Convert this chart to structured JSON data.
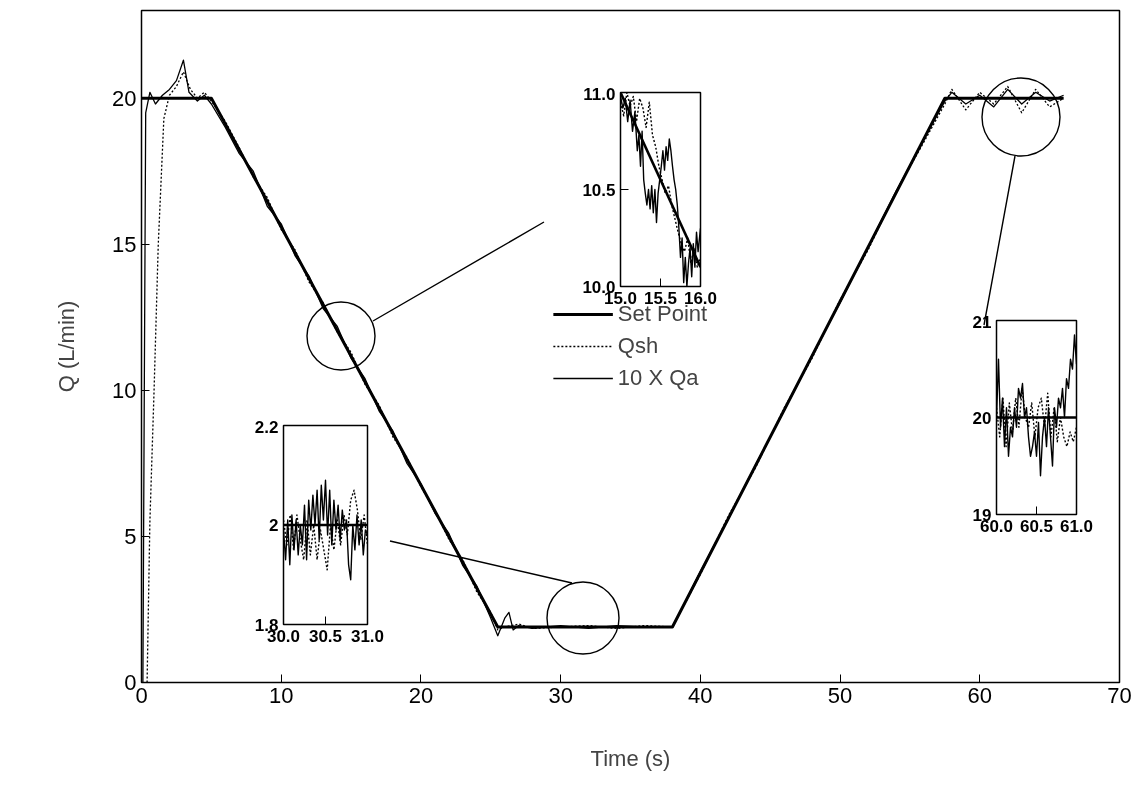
{
  "chart_data": [
    {
      "type": "line",
      "xlabel": "Time (s)",
      "ylabel": "Q (L/min)",
      "xlim": [
        0,
        70
      ],
      "ylim": [
        0,
        23
      ],
      "xticks": [
        0,
        10,
        20,
        30,
        40,
        50,
        60,
        70
      ],
      "yticks": [
        0,
        5,
        10,
        15,
        20
      ],
      "legend": "center",
      "series": [
        {
          "name": "Set Point",
          "color": "#000000",
          "line_style": "solid",
          "x": [
            0,
            5,
            25.5,
            38,
            57.5,
            66
          ],
          "values": [
            20,
            20,
            1.9,
            1.9,
            20,
            20
          ]
        },
        {
          "name": "Qsh",
          "color": "#000000",
          "line_style": "dotted",
          "x": [
            0.4,
            0.6,
            0.9,
            1.2,
            1.6,
            2.0,
            2.5,
            3.0,
            3.5,
            4.0,
            4.5,
            5.0,
            6,
            7,
            8,
            9,
            10,
            11,
            12,
            13,
            14,
            15,
            16,
            17,
            18,
            19,
            20,
            21,
            22,
            23,
            24,
            25,
            25.5,
            26,
            27,
            28,
            30,
            32,
            34,
            36,
            38,
            40,
            42,
            44,
            46,
            48,
            50,
            52,
            54,
            56,
            57.5,
            58,
            59,
            60,
            61,
            62,
            63,
            64,
            65,
            66
          ],
          "values": [
            0,
            5.5,
            10,
            15,
            19.3,
            20.1,
            20.4,
            20.9,
            20.3,
            20.0,
            20.2,
            19.9,
            19.2,
            18.3,
            17.3,
            16.6,
            15.5,
            14.8,
            13.7,
            13.0,
            12.0,
            11.3,
            10.2,
            9.5,
            8.4,
            7.7,
            6.7,
            5.9,
            4.9,
            4.2,
            3.1,
            2.4,
            1.8,
            1.9,
            2.0,
            1.85,
            1.9,
            1.95,
            1.85,
            1.95,
            1.9,
            3.7,
            5.7,
            7.4,
            9.4,
            11.1,
            13.1,
            14.8,
            16.8,
            18.5,
            19.8,
            20.3,
            19.6,
            20.2,
            19.8,
            20.4,
            19.5,
            20.3,
            19.7,
            20.0
          ]
        },
        {
          "name": "10 X Qa",
          "color": "#000000",
          "line_style": "solid",
          "x": [
            0.1,
            0.2,
            0.3,
            0.6,
            1.0,
            1.5,
            2.0,
            2.5,
            3.0,
            3.4,
            4.0,
            4.5,
            5.0,
            6,
            7,
            8,
            9,
            10,
            11,
            12,
            13,
            14,
            15,
            16,
            17,
            18,
            19,
            20,
            21,
            22,
            23,
            24,
            25,
            25.5,
            26,
            26.3,
            26.6,
            27,
            28,
            30,
            32,
            34,
            36,
            38,
            40,
            42,
            44,
            46,
            48,
            50,
            52,
            54,
            56,
            57.5,
            58,
            59,
            60,
            61,
            62,
            63,
            64,
            65,
            66
          ],
          "values": [
            0,
            10,
            19.5,
            20.2,
            19.8,
            20.1,
            20.3,
            20.6,
            21.3,
            20.2,
            19.9,
            20.1,
            19.8,
            19.0,
            18.1,
            17.5,
            16.3,
            15.7,
            14.6,
            13.9,
            12.8,
            12.2,
            11.1,
            10.4,
            9.3,
            8.6,
            7.5,
            6.8,
            5.8,
            5.1,
            4.0,
            3.3,
            2.2,
            1.6,
            2.2,
            2.4,
            1.8,
            1.95,
            1.85,
            1.95,
            1.85,
            1.95,
            1.9,
            1.9,
            3.8,
            5.6,
            7.5,
            9.3,
            11.2,
            13.0,
            14.9,
            16.8,
            18.6,
            19.9,
            20.2,
            19.8,
            20.1,
            19.7,
            20.3,
            19.8,
            20.2,
            19.9,
            20.1
          ]
        }
      ]
    },
    {
      "type": "line",
      "xlim": [
        15,
        16
      ],
      "ylim": [
        10,
        11
      ],
      "xticks": [
        {
          "value": 15,
          "label": "15.0"
        },
        {
          "value": 15.5,
          "label": "15.5"
        },
        {
          "value": 16,
          "label": "16.0"
        }
      ],
      "yticks": [
        {
          "value": 10,
          "label": "10.0"
        },
        {
          "value": 10.5,
          "label": "10.5"
        },
        {
          "value": 11,
          "label": "11.0"
        }
      ],
      "series": [
        {
          "color": "#000000",
          "line_style": "solid",
          "x": [
            15,
            16
          ],
          "values": [
            11,
            10.1
          ]
        },
        {
          "color": "#000000",
          "line_style": "dotted",
          "x": [
            15.0,
            15.04,
            15.08,
            15.12,
            15.16,
            15.2,
            15.24,
            15.28,
            15.32,
            15.36,
            15.4,
            15.44,
            15.48,
            15.52,
            15.56,
            15.6,
            15.64,
            15.68,
            15.72,
            15.76,
            15.8,
            15.84,
            15.88,
            15.92,
            15.96,
            16.0
          ],
          "values": [
            10.95,
            10.88,
            11.0,
            10.93,
            10.98,
            10.85,
            10.97,
            10.92,
            10.82,
            10.95,
            10.78,
            10.72,
            10.62,
            10.55,
            10.48,
            10.52,
            10.42,
            10.35,
            10.28,
            10.22,
            10.18,
            10.25,
            10.12,
            10.2,
            10.1,
            10.15
          ]
        },
        {
          "color": "#000000",
          "line_style": "solid",
          "x": [
            15.0,
            15.03,
            15.06,
            15.09,
            15.12,
            15.15,
            15.18,
            15.21,
            15.23,
            15.25,
            15.27,
            15.29,
            15.31,
            15.33,
            15.35,
            15.37,
            15.39,
            15.41,
            15.43,
            15.45,
            15.47,
            15.49,
            15.51,
            15.53,
            15.55,
            15.57,
            15.59,
            15.61,
            15.63,
            15.65,
            15.67,
            15.69,
            15.71,
            15.73,
            15.75,
            15.77,
            15.79,
            15.81,
            15.83,
            15.85,
            15.87,
            15.89,
            15.91,
            15.93,
            15.95,
            15.97,
            16.0
          ],
          "values": [
            10.98,
            10.92,
            10.97,
            10.85,
            10.96,
            10.8,
            10.9,
            10.7,
            10.78,
            10.62,
            10.8,
            10.55,
            10.48,
            10.42,
            10.5,
            10.4,
            10.52,
            10.38,
            10.5,
            10.33,
            10.48,
            10.55,
            10.62,
            10.7,
            10.6,
            10.72,
            10.65,
            10.76,
            10.7,
            10.62,
            10.55,
            10.5,
            10.42,
            10.3,
            10.15,
            10.25,
            10.02,
            10.15,
            10.0,
            10.12,
            10.2,
            10.05,
            10.22,
            10.1,
            10.28,
            10.18,
            10.3
          ]
        }
      ]
    },
    {
      "type": "line",
      "xlim": [
        30,
        31
      ],
      "ylim": [
        1.8,
        2.2
      ],
      "xticks": [
        {
          "value": 30,
          "label": "30.0"
        },
        {
          "value": 30.5,
          "label": "30.5"
        },
        {
          "value": 31,
          "label": "31.0"
        }
      ],
      "yticks": [
        1.8,
        2.0,
        2.2
      ],
      "series": [
        {
          "color": "#000000",
          "line_style": "solid",
          "x": [
            30,
            31
          ],
          "values": [
            2.0,
            2.0
          ]
        },
        {
          "color": "#000000",
          "line_style": "dotted",
          "x": [
            30.0,
            30.04,
            30.08,
            30.12,
            30.16,
            30.2,
            30.24,
            30.28,
            30.32,
            30.36,
            30.4,
            30.44,
            30.48,
            30.52,
            30.56,
            30.6,
            30.64,
            30.68,
            30.72,
            30.76,
            30.8,
            30.84,
            30.88,
            30.92,
            30.96,
            31.0
          ],
          "values": [
            2.01,
            1.96,
            2.02,
            1.95,
            2.02,
            1.97,
            1.93,
            2.01,
            1.94,
            2.0,
            1.93,
            1.99,
            1.95,
            1.91,
            2.0,
            1.95,
            2.01,
            1.96,
            2.02,
            1.98,
            2.05,
            2.07,
            2.03,
            1.97,
            2.02,
            1.96
          ]
        },
        {
          "color": "#000000",
          "line_style": "solid",
          "x": [
            30.0,
            30.025,
            30.05,
            30.075,
            30.1,
            30.125,
            30.15,
            30.175,
            30.2,
            30.225,
            30.25,
            30.275,
            30.3,
            30.325,
            30.35,
            30.375,
            30.4,
            30.425,
            30.45,
            30.475,
            30.5,
            30.525,
            30.55,
            30.575,
            30.6,
            30.625,
            30.65,
            30.675,
            30.7,
            30.725,
            30.75,
            30.775,
            30.8,
            30.825,
            30.85,
            30.875,
            30.9,
            30.925,
            30.95,
            30.975,
            31.0
          ],
          "values": [
            1.99,
            1.93,
            2.01,
            1.92,
            2.02,
            1.95,
            2.01,
            1.94,
            2.0,
            1.96,
            2.04,
            1.93,
            2.05,
            1.99,
            2.06,
            2.0,
            2.07,
            1.97,
            2.08,
            2.01,
            2.09,
            1.98,
            2.07,
            1.96,
            2.05,
            1.99,
            2.04,
            1.97,
            2.03,
            1.99,
            2.01,
            1.92,
            1.89,
            2.0,
            1.95,
            2.02,
            1.96,
            2.01,
            1.94,
            1.99,
            1.98
          ]
        }
      ]
    },
    {
      "type": "line",
      "xlim": [
        60,
        61
      ],
      "ylim": [
        19,
        21
      ],
      "xticks": [
        {
          "value": 60,
          "label": "60.0"
        },
        {
          "value": 60.5,
          "label": "60.5"
        },
        {
          "value": 61,
          "label": "61.0"
        }
      ],
      "yticks": [
        19,
        20,
        21
      ],
      "series": [
        {
          "color": "#000000",
          "line_style": "solid",
          "x": [
            60,
            61
          ],
          "values": [
            20,
            20
          ]
        },
        {
          "color": "#000000",
          "line_style": "dotted",
          "x": [
            60.0,
            60.04,
            60.08,
            60.12,
            60.16,
            60.2,
            60.24,
            60.28,
            60.32,
            60.36,
            60.4,
            60.44,
            60.48,
            60.52,
            60.56,
            60.6,
            60.64,
            60.68,
            60.72,
            60.76,
            60.8,
            60.84,
            60.88,
            60.92,
            60.96,
            61.0
          ],
          "values": [
            20.1,
            19.8,
            20.2,
            19.7,
            20.15,
            19.85,
            20.2,
            19.9,
            20.3,
            20.0,
            19.9,
            20.15,
            19.8,
            20.1,
            20.2,
            19.9,
            20.25,
            19.8,
            20.1,
            19.75,
            20.0,
            19.8,
            19.7,
            19.85,
            19.75,
            19.9
          ]
        },
        {
          "color": "#000000",
          "line_style": "solid",
          "x": [
            60.0,
            60.025,
            60.05,
            60.075,
            60.1,
            60.125,
            60.15,
            60.175,
            60.2,
            60.225,
            60.25,
            60.275,
            60.3,
            60.325,
            60.35,
            60.375,
            60.4,
            60.425,
            60.45,
            60.475,
            60.5,
            60.525,
            60.55,
            60.575,
            60.6,
            60.625,
            60.65,
            60.675,
            60.7,
            60.725,
            60.75,
            60.775,
            60.8,
            60.825,
            60.85,
            60.875,
            60.9,
            60.925,
            60.95,
            60.975,
            61.0
          ],
          "values": [
            20.0,
            20.6,
            19.9,
            20.2,
            19.7,
            20.1,
            19.6,
            19.9,
            19.8,
            20.1,
            19.9,
            20.3,
            20.2,
            20.35,
            20.0,
            20.1,
            19.8,
            19.6,
            19.7,
            19.85,
            19.6,
            19.95,
            19.4,
            19.8,
            20.0,
            19.7,
            20.1,
            19.8,
            19.5,
            20.1,
            19.9,
            20.2,
            20.1,
            20.3,
            20.0,
            20.4,
            20.3,
            20.6,
            20.5,
            20.85,
            20.55
          ]
        }
      ]
    }
  ]
}
